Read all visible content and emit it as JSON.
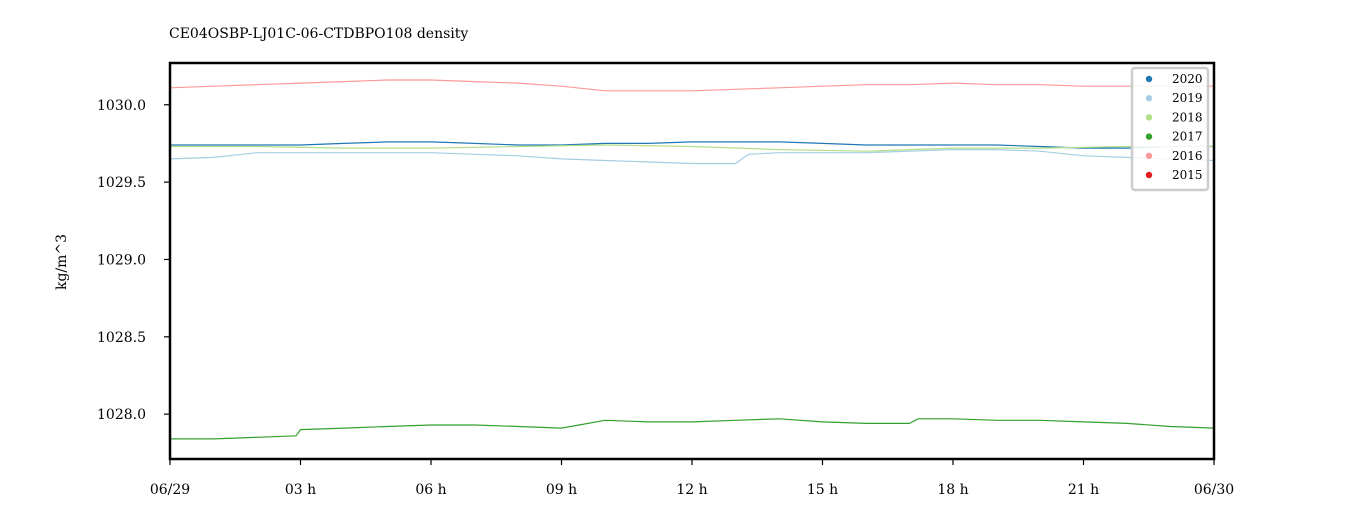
{
  "chart_data": {
    "type": "line",
    "title": "CE04OSBP-LJ01C-06-CTDBPO108 density",
    "xlabel": "",
    "ylabel": "kg/m^3",
    "xlim": [
      0,
      24
    ],
    "ylim": [
      1027.71,
      1030.27
    ],
    "x_ticks": [
      0,
      3,
      6,
      9,
      12,
      15,
      18,
      21,
      24
    ],
    "x_tick_labels": [
      "06/29",
      "03 h",
      "06 h",
      "09 h",
      "12 h",
      "15 h",
      "18 h",
      "21 h",
      "06/30"
    ],
    "y_ticks": [
      1028.0,
      1028.5,
      1029.0,
      1029.5,
      1030.0
    ],
    "y_tick_labels": [
      "1028.0",
      "1028.5",
      "1029.0",
      "1029.5",
      "1030.0"
    ],
    "grid": false,
    "legend_position": "top-right",
    "series": [
      {
        "name": "2020",
        "color": "#1f78b4",
        "x": [
          0,
          1,
          2,
          3,
          4,
          5,
          6,
          7,
          8,
          9,
          10,
          11,
          12,
          13,
          14,
          15,
          16,
          17,
          18,
          19,
          20,
          21,
          22,
          23,
          24
        ],
        "y": [
          1029.74,
          1029.74,
          1029.74,
          1029.74,
          1029.75,
          1029.76,
          1029.76,
          1029.75,
          1029.74,
          1029.74,
          1029.75,
          1029.75,
          1029.76,
          1029.76,
          1029.76,
          1029.75,
          1029.74,
          1029.74,
          1029.74,
          1029.74,
          1029.73,
          1029.72,
          1029.72,
          1029.73,
          1029.73
        ]
      },
      {
        "name": "2019",
        "color": "#a6cee3",
        "x": [
          0,
          1,
          2,
          3,
          4,
          5,
          6,
          7,
          8,
          9,
          10,
          11,
          12,
          12.5,
          13,
          13.3,
          14,
          15,
          16,
          17,
          18,
          19,
          20,
          21,
          22,
          23,
          24
        ],
        "y": [
          1029.65,
          1029.66,
          1029.69,
          1029.69,
          1029.69,
          1029.69,
          1029.69,
          1029.68,
          1029.67,
          1029.65,
          1029.64,
          1029.63,
          1029.62,
          1029.62,
          1029.62,
          1029.68,
          1029.69,
          1029.69,
          1029.69,
          1029.7,
          1029.71,
          1029.71,
          1029.7,
          1029.67,
          1029.66,
          1029.65,
          1029.64
        ]
      },
      {
        "name": "2018",
        "color": "#b2df8a",
        "x": [
          0,
          2,
          4,
          6,
          8,
          10,
          12,
          14,
          16,
          18,
          20,
          22,
          24
        ],
        "y": [
          1029.73,
          1029.73,
          1029.72,
          1029.72,
          1029.73,
          1029.74,
          1029.73,
          1029.71,
          1029.7,
          1029.72,
          1029.72,
          1029.73,
          1029.73
        ]
      },
      {
        "name": "2017",
        "color": "#33a02c",
        "x": [
          0,
          1,
          2,
          2.9,
          3,
          4,
          5,
          6,
          7,
          8,
          9,
          9.4,
          10,
          11,
          12,
          13,
          14,
          15,
          16,
          17,
          17.2,
          18,
          19,
          20,
          21,
          22,
          23,
          24
        ],
        "y": [
          1027.84,
          1027.84,
          1027.85,
          1027.86,
          1027.9,
          1027.91,
          1027.92,
          1027.93,
          1027.93,
          1027.92,
          1027.91,
          1027.93,
          1027.96,
          1027.95,
          1027.95,
          1027.96,
          1027.97,
          1027.95,
          1027.94,
          1027.94,
          1027.97,
          1027.97,
          1027.96,
          1027.96,
          1027.95,
          1027.94,
          1027.92,
          1027.91
        ]
      },
      {
        "name": "2016",
        "color": "#fb9a99",
        "x": [
          0,
          1,
          2,
          3,
          4,
          5,
          6,
          7,
          8,
          9,
          10,
          11,
          12,
          13,
          14,
          15,
          16,
          17,
          18,
          19,
          20,
          21,
          22,
          23,
          24
        ],
        "y": [
          1030.11,
          1030.12,
          1030.13,
          1030.14,
          1030.15,
          1030.16,
          1030.16,
          1030.15,
          1030.14,
          1030.12,
          1030.09,
          1030.09,
          1030.09,
          1030.1,
          1030.11,
          1030.12,
          1030.13,
          1030.13,
          1030.14,
          1030.13,
          1030.13,
          1030.12,
          1030.12,
          1030.12,
          1030.12
        ]
      },
      {
        "name": "2015",
        "color": "#e31a1c",
        "x": [],
        "y": []
      }
    ]
  }
}
